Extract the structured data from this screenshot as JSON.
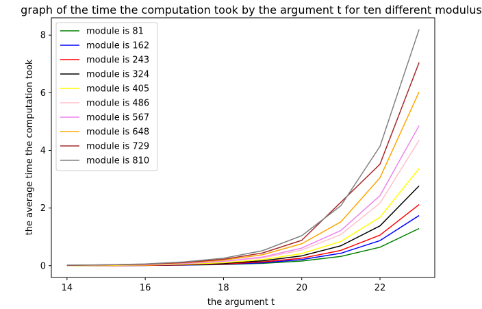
{
  "chart_data": {
    "type": "line",
    "title": "graph of the time the computation took by the argument t for ten different modulus",
    "xlabel": "the argument t",
    "ylabel": "the average time the computation took",
    "xlim": [
      13.6,
      23.4
    ],
    "ylim": [
      -0.41,
      8.6
    ],
    "xticks": [
      14,
      16,
      18,
      20,
      22
    ],
    "yticks": [
      0,
      2,
      4,
      6,
      8
    ],
    "grid": false,
    "legend_position": "top-left",
    "x": [
      14,
      15,
      16,
      17,
      18,
      19,
      20,
      21,
      22,
      23
    ],
    "series": [
      {
        "name": "module is 81",
        "color": "#008000",
        "values": [
          0.0,
          0.0,
          0.01,
          0.02,
          0.04,
          0.08,
          0.16,
          0.32,
          0.64,
          1.29
        ]
      },
      {
        "name": "module is 162",
        "color": "#0000ff",
        "values": [
          0.0,
          0.0,
          0.01,
          0.02,
          0.05,
          0.1,
          0.21,
          0.43,
          0.87,
          1.74
        ]
      },
      {
        "name": "module is 243",
        "color": "#ff0000",
        "values": [
          0.0,
          0.0,
          0.01,
          0.03,
          0.06,
          0.13,
          0.26,
          0.53,
          1.06,
          2.12
        ]
      },
      {
        "name": "module is 324",
        "color": "#000000",
        "values": [
          0.0,
          0.01,
          0.02,
          0.04,
          0.08,
          0.17,
          0.34,
          0.69,
          1.38,
          2.77
        ]
      },
      {
        "name": "module is 405",
        "color": "#ffff00",
        "values": [
          0.0,
          0.01,
          0.02,
          0.05,
          0.1,
          0.21,
          0.42,
          0.84,
          1.68,
          3.37
        ]
      },
      {
        "name": "module is 486",
        "color": "#ffc0cb",
        "values": [
          0.01,
          0.02,
          0.03,
          0.07,
          0.14,
          0.27,
          0.54,
          1.08,
          2.17,
          4.35
        ]
      },
      {
        "name": "module is 567",
        "color": "#ee82ee",
        "values": [
          0.01,
          0.02,
          0.04,
          0.08,
          0.15,
          0.3,
          0.61,
          1.22,
          2.43,
          4.86
        ]
      },
      {
        "name": "module is 648",
        "color": "#ffa500",
        "values": [
          0.01,
          0.02,
          0.05,
          0.1,
          0.19,
          0.38,
          0.76,
          1.52,
          3.05,
          6.03
        ]
      },
      {
        "name": "module is 729",
        "color": "#a52a2a",
        "values": [
          0.01,
          0.03,
          0.05,
          0.11,
          0.22,
          0.44,
          0.88,
          2.2,
          3.52,
          7.05
        ]
      },
      {
        "name": "module is 810",
        "color": "#808080",
        "values": [
          0.02,
          0.03,
          0.06,
          0.13,
          0.26,
          0.52,
          1.04,
          2.08,
          4.14,
          8.2
        ]
      }
    ]
  }
}
